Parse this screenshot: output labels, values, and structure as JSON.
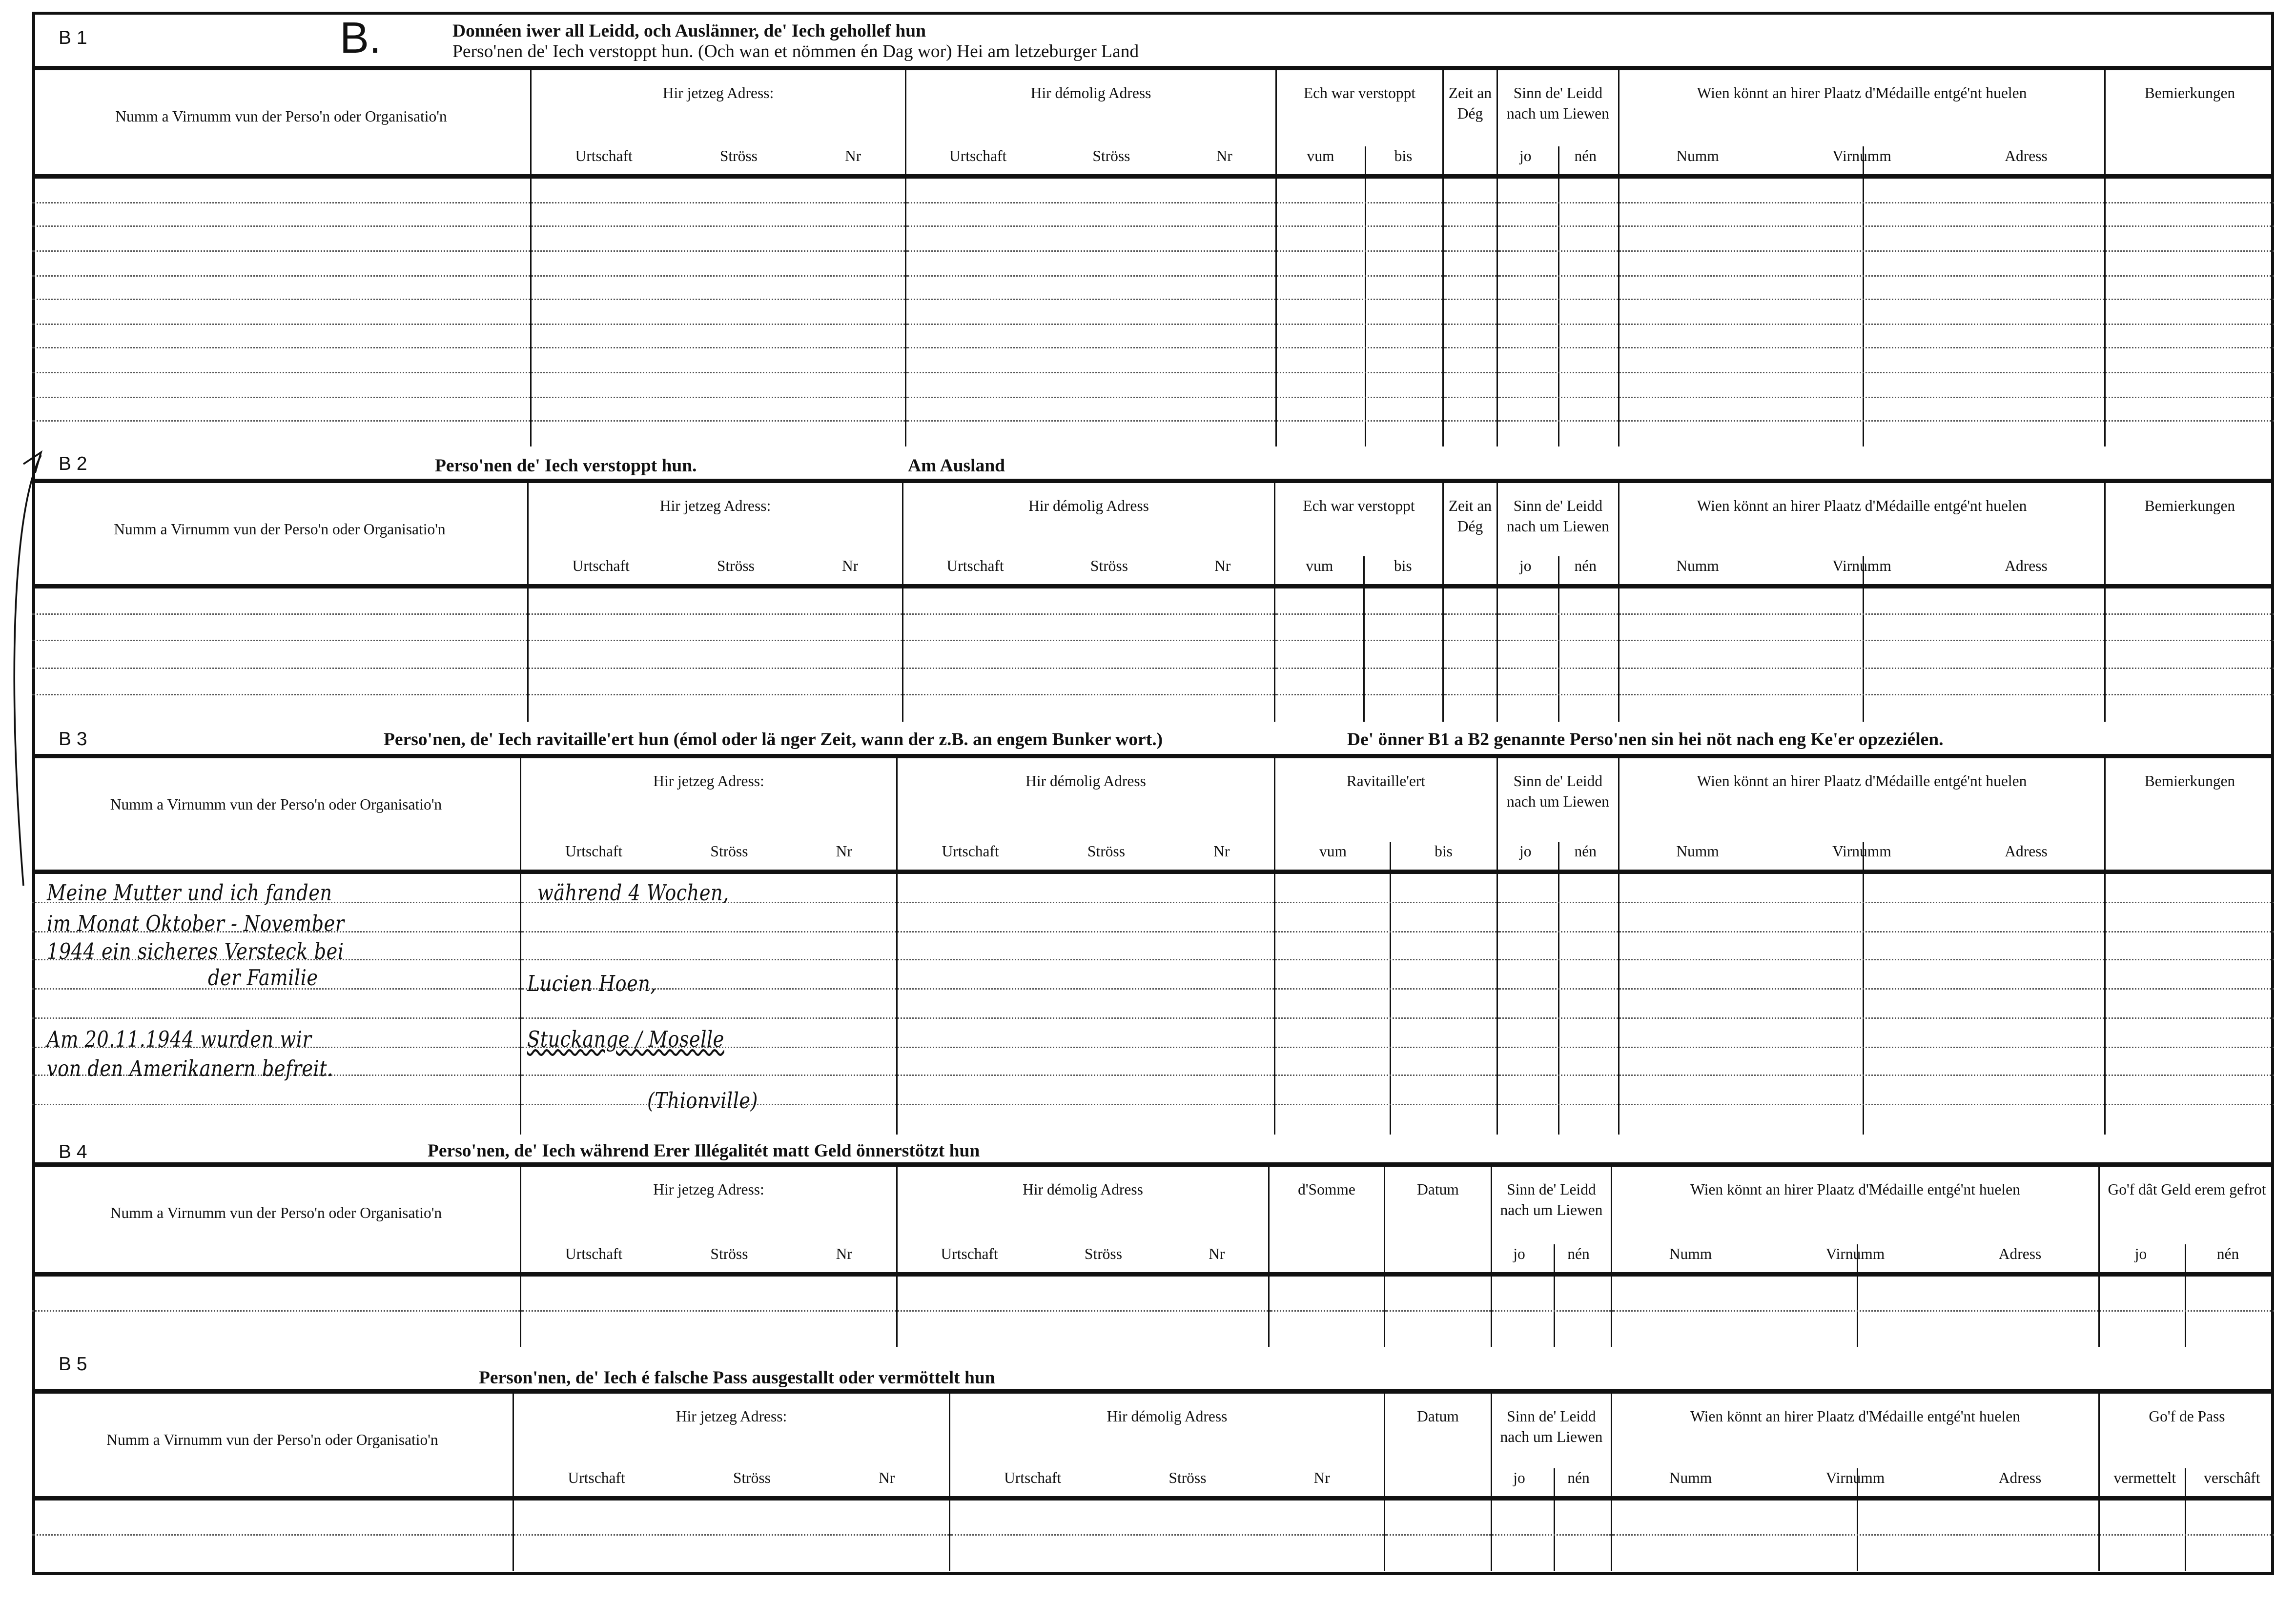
{
  "form_letter": "B.",
  "sections": [
    {
      "id": "B 1",
      "title_lines": [
        "Donnéen iwer all Leidd, och Auslänner, de' Iech gehollef hun",
        "Perso'nen de' Iech verstoppt hun. (Och wan et nömmen én Dag wor)    Hei am letzeburger Land"
      ],
      "columns": [
        {
          "label": "Numm a Virnumm vun der Perso'n oder Organisatio'n"
        },
        {
          "label": "Hir jetzeg Adress:",
          "sub": [
            "Urtschaft",
            "Ströss",
            "Nr"
          ]
        },
        {
          "label": "Hir démolig Adress",
          "sub": [
            "Urtschaft",
            "Ströss",
            "Nr"
          ]
        },
        {
          "label": "Ech war verstoppt",
          "sub": [
            "vum",
            "bis"
          ]
        },
        {
          "label": "Zeit an Dég"
        },
        {
          "label": "Sinn de' Leidd nach um Liewen",
          "sub": [
            "jo",
            "nén"
          ]
        },
        {
          "label": "Wien könnt an hirer Plaatz d'Médaille entgé'nt huelen",
          "sub": [
            "Numm",
            "Virnumm",
            "Adress"
          ]
        },
        {
          "label": "Bemierkungen"
        }
      ]
    },
    {
      "id": "B 2",
      "title_lines": [
        "Perso'nen de' Iech verstoppt hun.",
        "Am Ausland"
      ],
      "columns": [
        {
          "label": "Numm a Virnumm vun der Perso'n oder Organisatio'n"
        },
        {
          "label": "Hir jetzeg Adress:",
          "sub": [
            "Urtschaft",
            "Ströss",
            "Nr"
          ]
        },
        {
          "label": "Hir démolig Adress",
          "sub": [
            "Urtschaft",
            "Ströss",
            "Nr"
          ]
        },
        {
          "label": "Ech war verstoppt",
          "sub": [
            "vum",
            "bis"
          ]
        },
        {
          "label": "Zeit an Dég"
        },
        {
          "label": "Sinn de' Leidd nach um Liewen",
          "sub": [
            "jo",
            "nén"
          ]
        },
        {
          "label": "Wien könnt an hirer Plaatz d'Médaille entgé'nt huelen",
          "sub": [
            "Numm",
            "Virnumm",
            "Adress"
          ]
        },
        {
          "label": "Bemierkungen"
        }
      ]
    },
    {
      "id": "B 3",
      "title_lines": [
        "Perso'nen, de' Iech ravitaille'ert hun (émol oder lä nger Zeit, wann der z.B. an engem Bunker wort.)",
        "De' önner B1 a B2 genannte Perso'nen sin hei nöt nach eng Ke'er opzeziélen."
      ],
      "columns": [
        {
          "label": "Numm a Virnumm vun der Perso'n oder Organisatio'n"
        },
        {
          "label": "Hir jetzeg Adress:",
          "sub": [
            "Urtschaft",
            "Ströss",
            "Nr"
          ]
        },
        {
          "label": "Hir démolig Adress",
          "sub": [
            "Urtschaft",
            "Ströss",
            "Nr"
          ]
        },
        {
          "label": "Ravitaille'ert",
          "sub": [
            "vum",
            "bis"
          ]
        },
        {
          "label": "Sinn de' Leidd nach um Liewen",
          "sub": [
            "jo",
            "nén"
          ]
        },
        {
          "label": "Wien könnt an hirer Plaatz d'Médaille entgé'nt huelen",
          "sub": [
            "Numm",
            "Virnumm",
            "Adress"
          ]
        },
        {
          "label": "Bemierkungen"
        }
      ],
      "handwriting": {
        "name_column": [
          "Meine Mutter und ich fanden",
          "im Monat Oktober - November",
          "1944 ein sicheres Versteck bei",
          "der Familie",
          "Am 20.11.1944 wurden wir",
          "von den Amerikanern befreit."
        ],
        "address_column": [
          "während 4 Wochen,",
          "Lucien Hoen,",
          "Stuckange / Moselle",
          "(Thionville)"
        ]
      }
    },
    {
      "id": "B 4",
      "title_lines": [
        "Perso'nen, de' Iech während Erer Illégalitét matt Geld önnerstötzt hun"
      ],
      "columns": [
        {
          "label": "Numm a Virnumm vun der Perso'n oder Organisatio'n"
        },
        {
          "label": "Hir jetzeg Adress:",
          "sub": [
            "Urtschaft",
            "Ströss",
            "Nr"
          ]
        },
        {
          "label": "Hir démolig Adress",
          "sub": [
            "Urtschaft",
            "Ströss",
            "Nr"
          ]
        },
        {
          "label": "d'Somme"
        },
        {
          "label": "Datum"
        },
        {
          "label": "Sinn de' Leidd nach um Liewen",
          "sub": [
            "jo",
            "nén"
          ]
        },
        {
          "label": "Wien könnt an hirer Plaatz d'Médaille entgé'nt huelen",
          "sub": [
            "Numm",
            "Virnumm",
            "Adress"
          ]
        },
        {
          "label": "Go'f dât Geld erem gefrot",
          "sub": [
            "jo",
            "nén"
          ]
        }
      ]
    },
    {
      "id": "B 5",
      "title_lines": [
        "Person'nen, de' Iech é falsche Pass ausgestallt oder vermöttelt hun"
      ],
      "columns": [
        {
          "label": "Numm a Virnumm vun der Perso'n oder Organisatio'n"
        },
        {
          "label": "Hir jetzeg Adress:",
          "sub": [
            "Urtschaft",
            "Ströss",
            "Nr"
          ]
        },
        {
          "label": "Hir démolig Adress",
          "sub": [
            "Urtschaft",
            "Ströss",
            "Nr"
          ]
        },
        {
          "label": "Datum"
        },
        {
          "label": "Sinn de' Leidd nach um Liewen",
          "sub": [
            "jo",
            "nén"
          ]
        },
        {
          "label": "Wien könnt an hirer Plaatz d'Médaille entgé'nt huelen",
          "sub": [
            "Numm",
            "Virnumm",
            "Adress"
          ]
        },
        {
          "label": "Go'f de Pass",
          "sub": [
            "vermettelt",
            "verschâft"
          ]
        }
      ]
    }
  ]
}
